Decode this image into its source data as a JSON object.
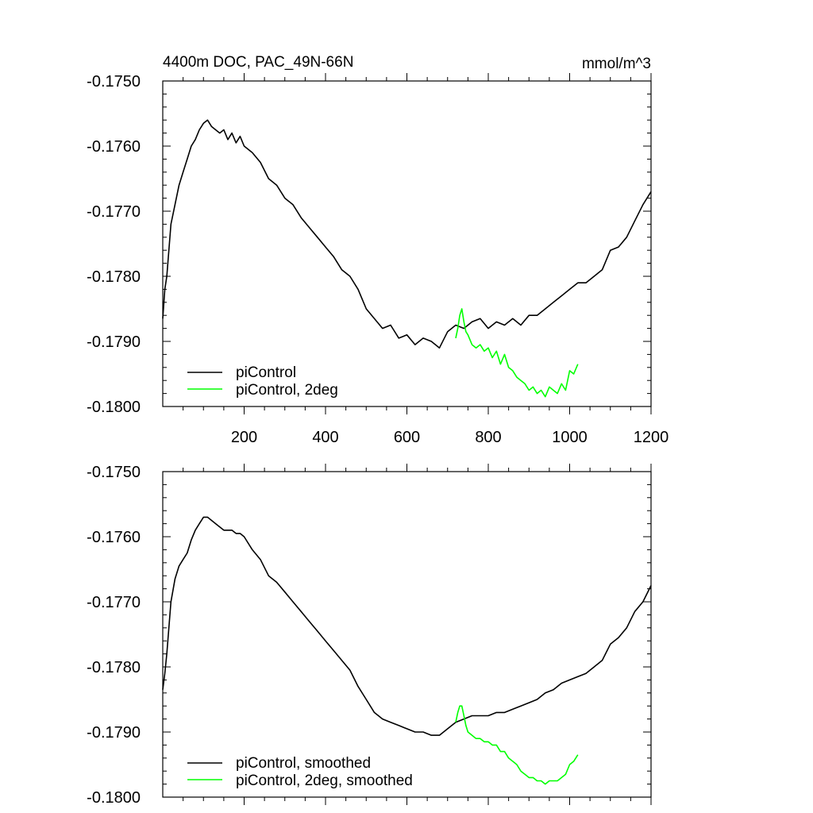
{
  "chart_data": [
    {
      "type": "line",
      "title_left": "4400m DOC, PAC_49N-66N",
      "title_right": "mmol/m^3",
      "xlabel": "",
      "ylabel": "",
      "xlim": [
        0,
        1200
      ],
      "ylim": [
        -0.18,
        -0.175
      ],
      "x_ticks": [
        200,
        400,
        600,
        800,
        1000,
        1200
      ],
      "x_tick_labels": [
        "200",
        "400",
        "600",
        "800",
        "1000",
        "1200"
      ],
      "y_ticks": [
        -0.175,
        -0.176,
        -0.177,
        -0.178,
        -0.179,
        -0.18
      ],
      "y_tick_labels": [
        "-0.1750",
        "-0.1760",
        "-0.1770",
        "-0.1780",
        "-0.1790",
        "-0.1800"
      ],
      "grid": false,
      "legend_position": "bottom-left",
      "series": [
        {
          "name": "piControl",
          "color": "#000000",
          "x": [
            0,
            5,
            10,
            20,
            30,
            40,
            50,
            60,
            70,
            80,
            90,
            100,
            110,
            120,
            130,
            140,
            150,
            160,
            170,
            180,
            190,
            200,
            220,
            240,
            260,
            280,
            300,
            320,
            340,
            360,
            380,
            400,
            420,
            440,
            460,
            480,
            500,
            520,
            540,
            560,
            580,
            600,
            620,
            640,
            660,
            680,
            700,
            720,
            740,
            760,
            780,
            800,
            820,
            840,
            860,
            880,
            900,
            920,
            940,
            960,
            980,
            1000,
            1020,
            1040,
            1060,
            1080,
            1100,
            1120,
            1140,
            1160,
            1180,
            1200
          ],
          "y": [
            -0.17865,
            -0.1782,
            -0.178,
            -0.1772,
            -0.1769,
            -0.1766,
            -0.1764,
            -0.1762,
            -0.176,
            -0.1759,
            -0.17575,
            -0.17565,
            -0.1756,
            -0.1757,
            -0.17575,
            -0.1758,
            -0.17575,
            -0.1759,
            -0.1758,
            -0.17595,
            -0.17585,
            -0.176,
            -0.1761,
            -0.17625,
            -0.1765,
            -0.1766,
            -0.1768,
            -0.1769,
            -0.1771,
            -0.17725,
            -0.1774,
            -0.17755,
            -0.1777,
            -0.1779,
            -0.178,
            -0.1782,
            -0.1785,
            -0.17865,
            -0.1788,
            -0.17875,
            -0.17895,
            -0.1789,
            -0.17905,
            -0.17895,
            -0.179,
            -0.1791,
            -0.17885,
            -0.17875,
            -0.1788,
            -0.1787,
            -0.17865,
            -0.1788,
            -0.1787,
            -0.17875,
            -0.17865,
            -0.17875,
            -0.1786,
            -0.1786,
            -0.1785,
            -0.1784,
            -0.1783,
            -0.1782,
            -0.1781,
            -0.1781,
            -0.178,
            -0.1779,
            -0.1776,
            -0.17755,
            -0.1774,
            -0.17715,
            -0.1769,
            -0.1767
          ]
        },
        {
          "name": "piControl, 2deg",
          "color": "#00ff00",
          "x": [
            720,
            725,
            730,
            735,
            740,
            745,
            750,
            760,
            770,
            780,
            790,
            800,
            810,
            820,
            830,
            840,
            850,
            860,
            870,
            880,
            890,
            900,
            910,
            920,
            930,
            940,
            950,
            960,
            970,
            980,
            990,
            1000,
            1010,
            1020
          ],
          "y": [
            -0.17895,
            -0.1788,
            -0.1786,
            -0.1785,
            -0.1787,
            -0.17885,
            -0.1789,
            -0.17905,
            -0.1791,
            -0.17905,
            -0.17915,
            -0.1791,
            -0.17925,
            -0.17915,
            -0.17935,
            -0.1792,
            -0.1794,
            -0.17945,
            -0.17955,
            -0.1796,
            -0.17965,
            -0.17975,
            -0.1797,
            -0.1798,
            -0.17975,
            -0.17985,
            -0.1797,
            -0.17975,
            -0.1798,
            -0.17965,
            -0.17975,
            -0.17945,
            -0.1795,
            -0.17935
          ]
        }
      ]
    },
    {
      "type": "line",
      "title_left": "",
      "title_right": "",
      "xlabel": "",
      "ylabel": "",
      "xlim": [
        0,
        1200
      ],
      "ylim": [
        -0.18,
        -0.175
      ],
      "x_ticks": [
        200,
        400,
        600,
        800,
        1000,
        1200
      ],
      "x_tick_labels": [],
      "y_ticks": [
        -0.175,
        -0.176,
        -0.177,
        -0.178,
        -0.179,
        -0.18
      ],
      "y_tick_labels": [
        "-0.1750",
        "-0.1760",
        "-0.1770",
        "-0.1780",
        "-0.1790",
        "-0.1800"
      ],
      "grid": false,
      "legend_position": "bottom-left",
      "series": [
        {
          "name": "piControl, smoothed",
          "color": "#000000",
          "x": [
            0,
            5,
            10,
            20,
            30,
            40,
            50,
            60,
            70,
            80,
            90,
            100,
            110,
            120,
            130,
            140,
            150,
            160,
            170,
            180,
            190,
            200,
            220,
            240,
            260,
            280,
            300,
            320,
            340,
            360,
            380,
            400,
            420,
            440,
            460,
            480,
            500,
            520,
            540,
            560,
            580,
            600,
            620,
            640,
            660,
            680,
            700,
            720,
            740,
            760,
            780,
            800,
            820,
            840,
            860,
            880,
            900,
            920,
            940,
            960,
            980,
            1000,
            1020,
            1040,
            1060,
            1080,
            1100,
            1120,
            1140,
            1160,
            1180,
            1200
          ],
          "y": [
            -0.17835,
            -0.1781,
            -0.1778,
            -0.177,
            -0.17665,
            -0.17645,
            -0.17635,
            -0.17625,
            -0.17605,
            -0.1759,
            -0.1758,
            -0.1757,
            -0.1757,
            -0.17575,
            -0.1758,
            -0.17585,
            -0.1759,
            -0.1759,
            -0.1759,
            -0.17595,
            -0.17595,
            -0.176,
            -0.1762,
            -0.17635,
            -0.1766,
            -0.1767,
            -0.17685,
            -0.177,
            -0.17715,
            -0.1773,
            -0.17745,
            -0.1776,
            -0.17775,
            -0.1779,
            -0.17805,
            -0.1783,
            -0.1785,
            -0.1787,
            -0.1788,
            -0.17885,
            -0.1789,
            -0.17895,
            -0.179,
            -0.179,
            -0.17905,
            -0.17905,
            -0.17895,
            -0.17885,
            -0.1788,
            -0.17875,
            -0.17875,
            -0.17875,
            -0.1787,
            -0.1787,
            -0.17865,
            -0.1786,
            -0.17855,
            -0.1785,
            -0.1784,
            -0.17835,
            -0.17825,
            -0.1782,
            -0.17815,
            -0.1781,
            -0.178,
            -0.1779,
            -0.17765,
            -0.17755,
            -0.1774,
            -0.17715,
            -0.177,
            -0.17675
          ]
        },
        {
          "name": "piControl, 2deg, smoothed",
          "color": "#00ff00",
          "x": [
            720,
            725,
            730,
            735,
            740,
            745,
            750,
            760,
            770,
            780,
            790,
            800,
            810,
            820,
            830,
            840,
            850,
            860,
            870,
            880,
            890,
            900,
            910,
            920,
            930,
            940,
            950,
            960,
            970,
            980,
            990,
            1000,
            1010,
            1020
          ],
          "y": [
            -0.17885,
            -0.1787,
            -0.1786,
            -0.1786,
            -0.17875,
            -0.1789,
            -0.179,
            -0.17905,
            -0.1791,
            -0.1791,
            -0.17915,
            -0.17915,
            -0.1792,
            -0.1792,
            -0.1793,
            -0.1793,
            -0.1794,
            -0.17945,
            -0.1795,
            -0.1796,
            -0.17965,
            -0.1797,
            -0.1797,
            -0.17975,
            -0.17975,
            -0.1798,
            -0.17975,
            -0.17975,
            -0.17975,
            -0.1797,
            -0.17965,
            -0.1795,
            -0.17945,
            -0.17935
          ]
        }
      ]
    }
  ]
}
